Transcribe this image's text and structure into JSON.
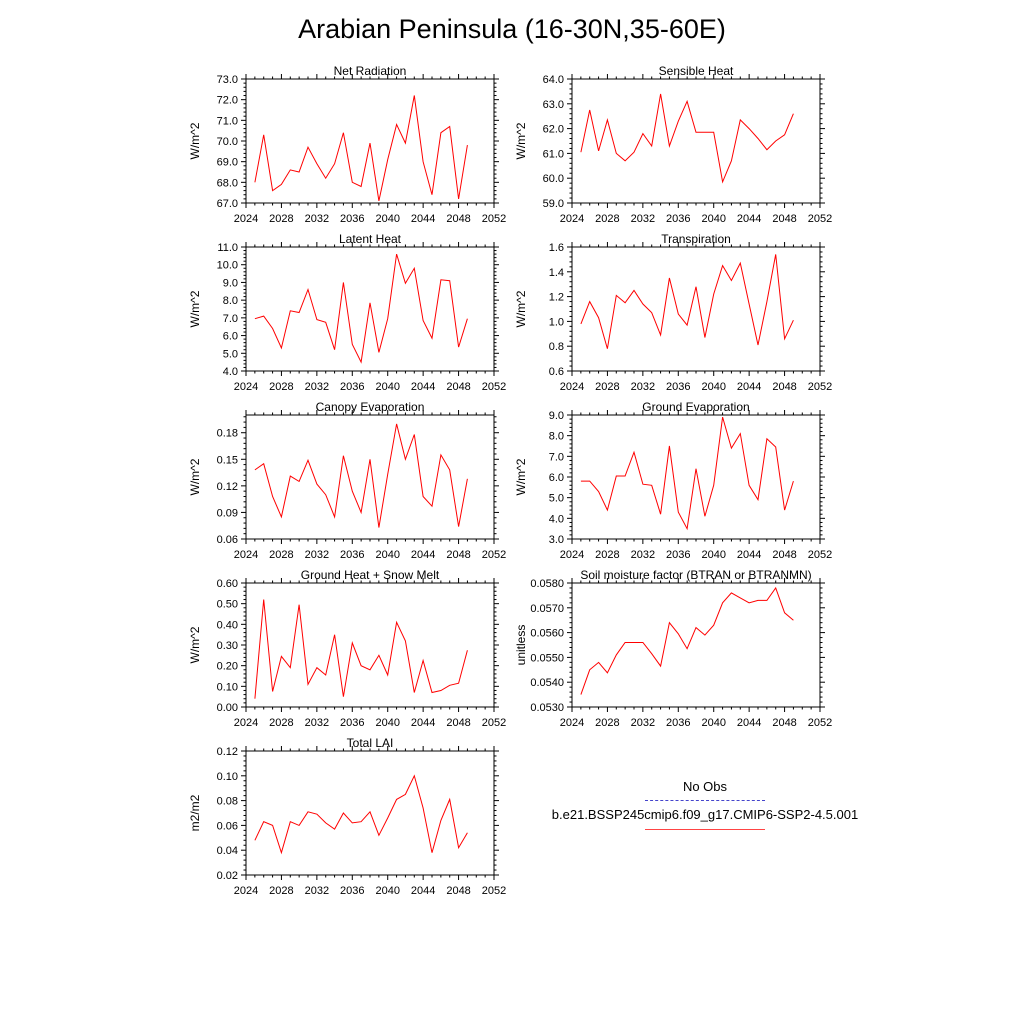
{
  "main_title": "Arabian Peninsula (16-30N,35-60E)",
  "legend": {
    "obs_label": "No Obs",
    "case_label": "b.e21.BSSP245cmip6.f09_g17.CMIP6-SSP2-4.5.001",
    "obs_color": "#4444cc",
    "case_color": "#ff0000"
  },
  "chart_data": [
    {
      "type": "line",
      "title": "Net Radiation",
      "ylabel": "W/m^2",
      "xlim": [
        2024,
        2052
      ],
      "xticks": [
        "2024",
        "2028",
        "2032",
        "2036",
        "2040",
        "2044",
        "2048",
        "2052"
      ],
      "ylim": [
        67.0,
        73.0
      ],
      "yticks": [
        "67.0",
        "68.0",
        "69.0",
        "70.0",
        "71.0",
        "72.0",
        "73.0"
      ],
      "series": [
        {
          "color": "#ff0000",
          "x": [
            2025,
            2026,
            2027,
            2028,
            2029,
            2030,
            2031,
            2032,
            2033,
            2034,
            2035,
            2036,
            2037,
            2038,
            2039,
            2040,
            2041,
            2042,
            2043,
            2044,
            2045,
            2046,
            2047,
            2048,
            2049
          ],
          "values": [
            68.0,
            70.3,
            67.6,
            67.9,
            68.6,
            68.5,
            69.7,
            68.9,
            68.2,
            68.9,
            70.4,
            68.0,
            67.8,
            69.9,
            67.1,
            69.1,
            70.8,
            69.9,
            72.2,
            69.0,
            67.4,
            70.4,
            70.7,
            67.2,
            69.8
          ]
        }
      ]
    },
    {
      "type": "line",
      "title": "Sensible Heat",
      "ylabel": "W/m^2",
      "xlim": [
        2024,
        2052
      ],
      "xticks": [
        "2024",
        "2028",
        "2032",
        "2036",
        "2040",
        "2044",
        "2048",
        "2052"
      ],
      "ylim": [
        59.0,
        64.0
      ],
      "yticks": [
        "59.0",
        "60.0",
        "61.0",
        "62.0",
        "63.0",
        "64.0"
      ],
      "series": [
        {
          "color": "#ff0000",
          "x": [
            2025,
            2026,
            2027,
            2028,
            2029,
            2030,
            2031,
            2032,
            2033,
            2034,
            2035,
            2036,
            2037,
            2038,
            2039,
            2040,
            2041,
            2042,
            2043,
            2044,
            2045,
            2046,
            2047,
            2048,
            2049
          ],
          "values": [
            61.05,
            62.75,
            61.1,
            62.35,
            61.0,
            60.7,
            61.05,
            61.8,
            61.3,
            63.4,
            61.3,
            62.3,
            63.1,
            61.85,
            61.85,
            61.85,
            59.85,
            60.7,
            62.35,
            62.0,
            61.6,
            61.15,
            61.5,
            61.75,
            62.6
          ]
        }
      ]
    },
    {
      "type": "line",
      "title": "Latent Heat",
      "ylabel": "W/m^2",
      "xlim": [
        2024,
        2052
      ],
      "xticks": [
        "2024",
        "2028",
        "2032",
        "2036",
        "2040",
        "2044",
        "2048",
        "2052"
      ],
      "ylim": [
        4.0,
        11.0
      ],
      "yticks": [
        "4.0",
        "5.0",
        "6.0",
        "7.0",
        "8.0",
        "9.0",
        "10.0",
        "11.0"
      ],
      "series": [
        {
          "color": "#ff0000",
          "x": [
            2025,
            2026,
            2027,
            2028,
            2029,
            2030,
            2031,
            2032,
            2033,
            2034,
            2035,
            2036,
            2037,
            2038,
            2039,
            2040,
            2041,
            2042,
            2043,
            2044,
            2045,
            2046,
            2047,
            2048,
            2049
          ],
          "values": [
            6.95,
            7.1,
            6.4,
            5.3,
            7.4,
            7.3,
            8.6,
            6.9,
            6.75,
            5.2,
            9.0,
            5.5,
            4.5,
            7.85,
            5.05,
            6.95,
            10.6,
            8.95,
            9.8,
            6.85,
            5.85,
            9.15,
            9.1,
            5.35,
            6.95
          ]
        }
      ]
    },
    {
      "type": "line",
      "title": "Transpiration",
      "ylabel": "W/m^2",
      "xlim": [
        2024,
        2052
      ],
      "xticks": [
        "2024",
        "2028",
        "2032",
        "2036",
        "2040",
        "2044",
        "2048",
        "2052"
      ],
      "ylim": [
        0.6,
        1.6
      ],
      "yticks": [
        "0.6",
        "0.8",
        "1.0",
        "1.2",
        "1.4",
        "1.6"
      ],
      "series": [
        {
          "color": "#ff0000",
          "x": [
            2025,
            2026,
            2027,
            2028,
            2029,
            2030,
            2031,
            2032,
            2033,
            2034,
            2035,
            2036,
            2037,
            2038,
            2039,
            2040,
            2041,
            2042,
            2043,
            2044,
            2045,
            2046,
            2047,
            2048,
            2049
          ],
          "values": [
            0.98,
            1.16,
            1.03,
            0.78,
            1.21,
            1.15,
            1.25,
            1.14,
            1.07,
            0.89,
            1.35,
            1.06,
            0.97,
            1.28,
            0.87,
            1.22,
            1.45,
            1.33,
            1.47,
            1.14,
            0.81,
            1.16,
            1.54,
            0.86,
            1.01
          ]
        }
      ]
    },
    {
      "type": "line",
      "title": "Canopy Evaporation",
      "ylabel": "W/m^2",
      "xlim": [
        2024,
        2052
      ],
      "xticks": [
        "2024",
        "2028",
        "2032",
        "2036",
        "2040",
        "2044",
        "2048",
        "2052"
      ],
      "ylim": [
        0.06,
        0.2
      ],
      "yticks": [
        "0.06",
        "0.09",
        "0.12",
        "0.15",
        "0.18"
      ],
      "series": [
        {
          "color": "#ff0000",
          "x": [
            2025,
            2026,
            2027,
            2028,
            2029,
            2030,
            2031,
            2032,
            2033,
            2034,
            2035,
            2036,
            2037,
            2038,
            2039,
            2040,
            2041,
            2042,
            2043,
            2044,
            2045,
            2046,
            2047,
            2048,
            2049
          ],
          "values": [
            0.138,
            0.145,
            0.108,
            0.085,
            0.131,
            0.125,
            0.149,
            0.122,
            0.11,
            0.085,
            0.154,
            0.114,
            0.09,
            0.15,
            0.073,
            0.133,
            0.19,
            0.15,
            0.178,
            0.108,
            0.097,
            0.155,
            0.138,
            0.074,
            0.128
          ]
        }
      ]
    },
    {
      "type": "line",
      "title": "Ground Evaporation",
      "ylabel": "W/m^2",
      "xlim": [
        2024,
        2052
      ],
      "xticks": [
        "2024",
        "2028",
        "2032",
        "2036",
        "2040",
        "2044",
        "2048",
        "2052"
      ],
      "ylim": [
        3.0,
        9.0
      ],
      "yticks": [
        "3.0",
        "4.0",
        "5.0",
        "6.0",
        "7.0",
        "8.0",
        "9.0"
      ],
      "series": [
        {
          "color": "#ff0000",
          "x": [
            2025,
            2026,
            2027,
            2028,
            2029,
            2030,
            2031,
            2032,
            2033,
            2034,
            2035,
            2036,
            2037,
            2038,
            2039,
            2040,
            2041,
            2042,
            2043,
            2044,
            2045,
            2046,
            2047,
            2048,
            2049
          ],
          "values": [
            5.8,
            5.8,
            5.3,
            4.4,
            6.05,
            6.05,
            7.2,
            5.65,
            5.6,
            4.2,
            7.5,
            4.3,
            3.5,
            6.4,
            4.1,
            5.6,
            8.9,
            7.4,
            8.1,
            5.6,
            4.9,
            7.85,
            7.45,
            4.4,
            5.8
          ]
        }
      ]
    },
    {
      "type": "line",
      "title": "Ground Heat + Snow Melt",
      "ylabel": "W/m^2",
      "xlim": [
        2024,
        2052
      ],
      "xticks": [
        "2024",
        "2028",
        "2032",
        "2036",
        "2040",
        "2044",
        "2048",
        "2052"
      ],
      "ylim": [
        0.0,
        0.6
      ],
      "yticks": [
        "0.00",
        "0.10",
        "0.20",
        "0.30",
        "0.40",
        "0.50",
        "0.60"
      ],
      "series": [
        {
          "color": "#ff0000",
          "x": [
            2025,
            2026,
            2027,
            2028,
            2029,
            2030,
            2031,
            2032,
            2033,
            2034,
            2035,
            2036,
            2037,
            2038,
            2039,
            2040,
            2041,
            2042,
            2043,
            2044,
            2045,
            2046,
            2047,
            2048,
            2049
          ],
          "values": [
            0.04,
            0.52,
            0.075,
            0.245,
            0.19,
            0.495,
            0.11,
            0.19,
            0.155,
            0.35,
            0.05,
            0.31,
            0.2,
            0.18,
            0.25,
            0.155,
            0.41,
            0.32,
            0.07,
            0.225,
            0.07,
            0.08,
            0.105,
            0.115,
            0.275
          ]
        }
      ]
    },
    {
      "type": "line",
      "title": "Soil moisture factor (BTRAN or BTRANMN)",
      "ylabel": "unitless",
      "xlim": [
        2024,
        2052
      ],
      "xticks": [
        "2024",
        "2028",
        "2032",
        "2036",
        "2040",
        "2044",
        "2048",
        "2052"
      ],
      "ylim": [
        0.053,
        0.058
      ],
      "yticks": [
        "0.0530",
        "0.0540",
        "0.0550",
        "0.0560",
        "0.0570",
        "0.0580"
      ],
      "series": [
        {
          "color": "#ff0000",
          "x": [
            2025,
            2026,
            2027,
            2028,
            2029,
            2030,
            2031,
            2032,
            2033,
            2034,
            2035,
            2036,
            2037,
            2038,
            2039,
            2040,
            2041,
            2042,
            2043,
            2044,
            2045,
            2046,
            2047,
            2048,
            2049
          ],
          "values": [
            0.0535,
            0.0545,
            0.0548,
            0.05438,
            0.0551,
            0.0556,
            0.0556,
            0.0556,
            0.05515,
            0.05465,
            0.0564,
            0.05595,
            0.05535,
            0.0562,
            0.0559,
            0.0563,
            0.0572,
            0.0576,
            0.0574,
            0.0572,
            0.0573,
            0.0573,
            0.0578,
            0.0568,
            0.0565
          ]
        }
      ]
    },
    {
      "type": "line",
      "title": "Total LAI",
      "ylabel": "m2/m2",
      "xlim": [
        2024,
        2052
      ],
      "xticks": [
        "2024",
        "2028",
        "2032",
        "2036",
        "2040",
        "2044",
        "2048",
        "2052"
      ],
      "ylim": [
        0.02,
        0.12
      ],
      "yticks": [
        "0.02",
        "0.04",
        "0.06",
        "0.08",
        "0.10",
        "0.12"
      ],
      "series": [
        {
          "color": "#ff0000",
          "x": [
            2025,
            2026,
            2027,
            2028,
            2029,
            2030,
            2031,
            2032,
            2033,
            2034,
            2035,
            2036,
            2037,
            2038,
            2039,
            2040,
            2041,
            2042,
            2043,
            2044,
            2045,
            2046,
            2047,
            2048,
            2049
          ],
          "values": [
            0.048,
            0.063,
            0.06,
            0.038,
            0.063,
            0.06,
            0.071,
            0.069,
            0.062,
            0.057,
            0.07,
            0.062,
            0.063,
            0.071,
            0.052,
            0.066,
            0.081,
            0.085,
            0.1,
            0.074,
            0.038,
            0.064,
            0.081,
            0.042,
            0.054
          ]
        }
      ]
    }
  ]
}
